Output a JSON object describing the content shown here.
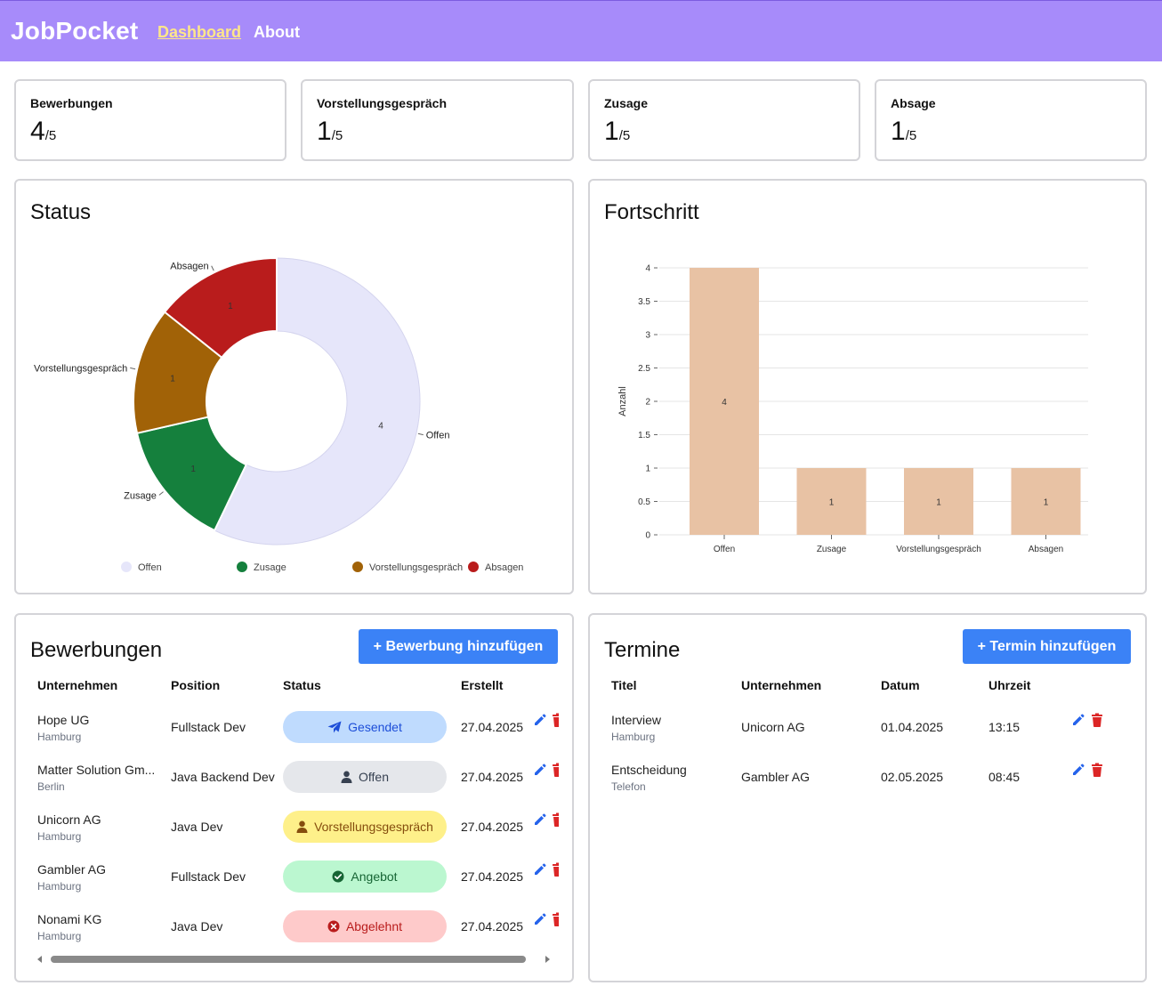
{
  "nav": {
    "brand": "JobPocket",
    "links": [
      "Dashboard",
      "About"
    ]
  },
  "stats": [
    {
      "label": "Bewerbungen",
      "value": "4",
      "total": "/5"
    },
    {
      "label": "Vorstellungsgespräch",
      "value": "1",
      "total": "/5"
    },
    {
      "label": "Zusage",
      "value": "1",
      "total": "/5"
    },
    {
      "label": "Absage",
      "value": "1",
      "total": "/5"
    }
  ],
  "status_chart": {
    "title": "Status"
  },
  "progress_chart": {
    "title": "Fortschritt"
  },
  "chart_data": [
    {
      "type": "pie",
      "title": "Status",
      "categories": [
        "Offen",
        "Zusage",
        "Vorstellungsgespräch",
        "Absagen"
      ],
      "values": [
        4,
        1,
        1,
        1
      ],
      "colors": [
        "#e6e6fa",
        "#15803d",
        "#a16207",
        "#b91c1c"
      ],
      "legend": "bottom"
    },
    {
      "type": "bar",
      "title": "Fortschritt",
      "categories": [
        "Offen",
        "Zusage",
        "Vorstellungsgespräch",
        "Absagen"
      ],
      "values": [
        4,
        1,
        1,
        1
      ],
      "ylabel": "Anzahl",
      "ylim": [
        0,
        4
      ],
      "yticks": [
        "0",
        "0.5",
        "1",
        "1.5",
        "2",
        "2.5",
        "3",
        "3.5",
        "4"
      ],
      "grid": true,
      "color": "#e8c2a4"
    }
  ],
  "applications": {
    "title": "Bewerbungen",
    "add_button": "+ Bewerbung hinzufügen",
    "headers": [
      "Unternehmen",
      "Position",
      "Status",
      "Erstellt"
    ],
    "rows": [
      {
        "company": "Hope UG",
        "city": "Hamburg",
        "position": "Fullstack Dev",
        "status": "Gesendet",
        "status_key": "sent",
        "created": "27.04.2025"
      },
      {
        "company": "Matter Solution Gm...",
        "city": "Berlin",
        "position": "Java Backend Dev",
        "status": "Offen",
        "status_key": "open",
        "created": "27.04.2025"
      },
      {
        "company": "Unicorn AG",
        "city": "Hamburg",
        "position": "Java Dev",
        "status": "Vorstellungsgespräch",
        "status_key": "interview",
        "created": "27.04.2025"
      },
      {
        "company": "Gambler AG",
        "city": "Hamburg",
        "position": "Fullstack Dev",
        "status": "Angebot",
        "status_key": "offer",
        "created": "27.04.2025"
      },
      {
        "company": "Nonami KG",
        "city": "Hamburg",
        "position": "Java Dev",
        "status": "Abgelehnt",
        "status_key": "rejected",
        "created": "27.04.2025"
      }
    ],
    "status_colors": {
      "sent": {
        "bg": "#bfdbfe",
        "fg": "#1d4ed8"
      },
      "open": {
        "bg": "#e5e7eb",
        "fg": "#374151"
      },
      "interview": {
        "bg": "#fef08a",
        "fg": "#854d0e"
      },
      "offer": {
        "bg": "#bbf7d0",
        "fg": "#166534"
      },
      "rejected": {
        "bg": "#fecaca",
        "fg": "#b91c1c"
      }
    }
  },
  "appointments": {
    "title": "Termine",
    "add_button": "+ Termin hinzufügen",
    "headers": [
      "Titel",
      "Unternehmen",
      "Datum",
      "Uhrzeit"
    ],
    "rows": [
      {
        "title": "Interview",
        "sub": "Hamburg",
        "company": "Unicorn AG",
        "date": "01.04.2025",
        "time": "13:15"
      },
      {
        "title": "Entscheidung",
        "sub": "Telefon",
        "company": "Gambler AG",
        "date": "02.05.2025",
        "time": "08:45"
      }
    ]
  },
  "icons": {
    "edit": "pencil-icon",
    "delete": "trash-icon",
    "sent": "paper-plane-icon",
    "open": "user-icon",
    "interview": "user-icon",
    "offer": "check-circle-icon",
    "rejected": "x-circle-icon"
  }
}
